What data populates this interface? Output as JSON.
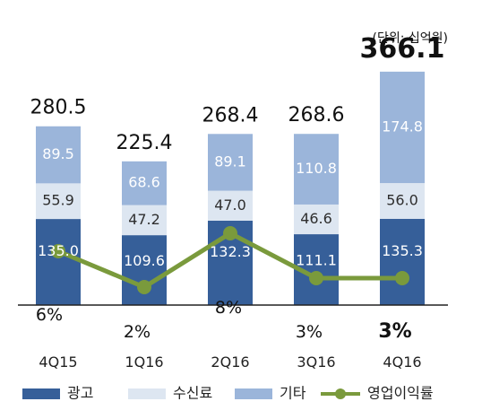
{
  "unit": "(단위: 십억원)",
  "chart_data": {
    "type": "bar",
    "stacked": true,
    "categories": [
      "4Q15",
      "1Q16",
      "2Q16",
      "3Q16",
      "4Q16"
    ],
    "series": [
      {
        "name": "광고",
        "values": [
          135.0,
          109.6,
          132.3,
          111.1,
          135.3
        ],
        "color": "#365f99"
      },
      {
        "name": "수신료",
        "values": [
          55.9,
          47.2,
          47.0,
          46.6,
          56.0
        ],
        "color": "#dde6f1"
      },
      {
        "name": "기타",
        "values": [
          89.5,
          68.6,
          89.1,
          110.8,
          174.8
        ],
        "color": "#9bb5da"
      }
    ],
    "value_labels": [
      [
        "135.0",
        "109.6",
        "132.3",
        "111.1",
        "135.3"
      ],
      [
        "55.9",
        "47.2",
        "47.0",
        "46.6",
        "56.0"
      ],
      [
        "89.5",
        "68.6",
        "89.1",
        "110.8",
        "174.8"
      ]
    ],
    "totals": [
      280.5,
      225.4,
      268.4,
      268.6,
      366.1
    ],
    "total_labels": [
      "280.5",
      "225.4",
      "268.4",
      "268.6",
      "366.1"
    ],
    "line_series": {
      "name": "영업이익률",
      "values": [
        6,
        2,
        8,
        3,
        3
      ],
      "labels": [
        "6%",
        "2%",
        "8%",
        "3%",
        "3%"
      ],
      "color": "#7a9a3c"
    },
    "ylim": [
      0,
      380
    ],
    "line_ylim": [
      0,
      30
    ],
    "legend": "bottom",
    "grid": false
  }
}
